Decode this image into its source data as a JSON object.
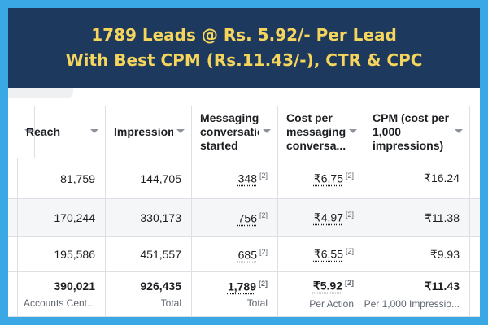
{
  "header": {
    "lines": [
      "1789 Leads @ Rs. 5.92/- Per Lead",
      "With Best CPM (Rs.11.43/-), CTR & CPC"
    ]
  },
  "table": {
    "columns": [
      "Reach",
      "Impressions",
      "Messaging conversations started",
      "Cost per messaging conversa...",
      "CPM (cost per 1,000 impressions)"
    ],
    "rows": [
      [
        "81,759",
        "144,705",
        {
          "text": "348",
          "note": "[2]"
        },
        {
          "text": "₹6.75",
          "note": "[2]"
        },
        "₹16.24"
      ],
      [
        "170,244",
        "330,173",
        {
          "text": "756",
          "note": "[2]"
        },
        {
          "text": "₹4.97",
          "note": "[2]"
        },
        "₹11.38"
      ],
      [
        "195,586",
        "451,557",
        {
          "text": "685",
          "note": "[2]"
        },
        {
          "text": "₹6.55",
          "note": "[2]"
        },
        "₹9.93"
      ]
    ],
    "totals": [
      {
        "text": "390,021",
        "sub": "Accounts Cent..."
      },
      {
        "text": "926,435",
        "sub": "Total"
      },
      {
        "text": "1,789",
        "note": "[2]",
        "sub": "Total"
      },
      {
        "text": "₹5.92",
        "note": "[2]",
        "sub": "Per Action"
      },
      {
        "text": "₹11.43",
        "sub": "Per 1,000 Impressio..."
      }
    ]
  }
}
